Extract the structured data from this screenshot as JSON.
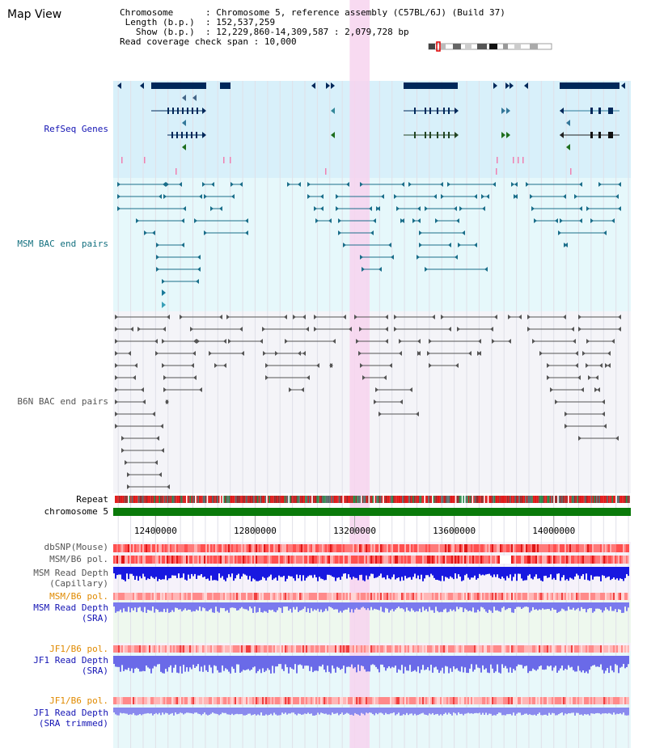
{
  "view": {
    "title": "Map View",
    "info": [
      {
        "key": "Chromosome",
        "value": "Chromosome 5, reference assembly (C57BL/6J) (Build 37)"
      },
      {
        "key": "Length (b.p.)",
        "value": "152,537,259"
      },
      {
        "key": "Show (b.p.)",
        "value": "12,229,860-14,309,587 : 2,079,728 bp"
      },
      {
        "key": "Read coverage check span",
        "value": "10,000"
      }
    ]
  },
  "colors": {
    "refseq_bg": "#d8f0fa",
    "msm_bac_bg": "#e6f8fb",
    "b6n_bac_bg": "#f4f4f8",
    "highlight": "#f7d4ef",
    "gene": "#00285a",
    "gene_green": "#1e6e1e",
    "msm_bac": "#1a6e8a",
    "b6n_bac": "#555555",
    "chromosome_bar": "#0a7a0a",
    "label_blue": "#1414b4",
    "label_teal": "#13707f",
    "label_gray": "#555555",
    "label_orange": "#e08a00"
  },
  "tracks": [
    {
      "id": "refseq",
      "label": "RefSeq Genes",
      "color_key": "label_blue"
    },
    {
      "id": "msm_bac",
      "label": "MSM BAC end pairs",
      "color_key": "label_teal"
    },
    {
      "id": "b6n_bac",
      "label": "B6N BAC end pairs",
      "color_key": "label_gray"
    },
    {
      "id": "repeat",
      "label": "Repeat",
      "color_key": ""
    },
    {
      "id": "chromosome",
      "label": "chromosome 5",
      "color_key": ""
    },
    {
      "id": "dbsnp",
      "label": "dbSNP(Mouse)",
      "color_key": "label_gray"
    },
    {
      "id": "msm_b6_pol1",
      "label": "MSM/B6 pol.",
      "color_key": "label_gray"
    },
    {
      "id": "msm_depth_cap",
      "label": "MSM Read Depth\n(Capillary)",
      "color_key": "label_gray"
    },
    {
      "id": "msm_b6_pol2",
      "label": "MSM/B6 pol.",
      "color_key": "label_orange"
    },
    {
      "id": "msm_depth_sra",
      "label": "MSM Read Depth\n(SRA)",
      "color_key": "label_blue"
    },
    {
      "id": "jf1_b6_pol1",
      "label": "JF1/B6 pol.",
      "color_key": "label_orange"
    },
    {
      "id": "jf1_depth_sra",
      "label": "JF1 Read Depth\n(SRA)",
      "color_key": "label_blue"
    },
    {
      "id": "jf1_b6_pol2",
      "label": "JF1/B6 pol.",
      "color_key": "label_orange"
    },
    {
      "id": "jf1_depth_trim",
      "label": "JF1 Read Depth\n(SRA trimmed)",
      "color_key": "label_blue"
    }
  ],
  "axis": {
    "start": 12229860,
    "end": 14309587,
    "ticks": [
      {
        "value": 12400000,
        "label": "12400000"
      },
      {
        "value": 12800000,
        "label": "12800000"
      },
      {
        "value": 13200000,
        "label": "13200000"
      },
      {
        "value": 13600000,
        "label": "13600000"
      },
      {
        "value": 14000000,
        "label": "14000000"
      }
    ],
    "highlight_range": [
      13180000,
      13260000
    ]
  },
  "coverage_span": 10000
}
